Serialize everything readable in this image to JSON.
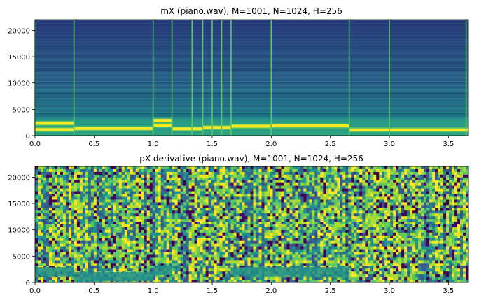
{
  "figure": {
    "background": "#ffffff",
    "colormap": "viridis",
    "colors": {
      "viridis_dark": "#440154",
      "viridis_blue": "#31688e",
      "viridis_teal": "#21918c",
      "viridis_green": "#5ec962",
      "viridis_yellow": "#fde725"
    }
  },
  "chart_data": [
    {
      "type": "heatmap",
      "title": "mX (piano.wav), M=1001, N=1024, H=256",
      "xlabel": "",
      "ylabel": "",
      "xlim": [
        0,
        3.67
      ],
      "ylim": [
        0,
        22050
      ],
      "xticks": [
        0.0,
        0.5,
        1.0,
        1.5,
        2.0,
        2.5,
        3.0,
        3.5
      ],
      "xtick_labels": [
        "0.0",
        "0.5",
        "1.0",
        "1.5",
        "2.0",
        "2.5",
        "3.0",
        "3.5"
      ],
      "yticks": [
        0,
        5000,
        10000,
        15000,
        20000
      ],
      "ytick_labels": [
        "0",
        "5000",
        "10000",
        "15000",
        "20000"
      ],
      "grid": false,
      "note_onsets_s": [
        0.0,
        0.33,
        1.0,
        1.16,
        1.33,
        1.42,
        1.5,
        1.58,
        1.66,
        2.0,
        2.66,
        3.0,
        3.65
      ],
      "harmonic_bands": [
        {
          "t_start": 0.0,
          "t_end": 0.33,
          "freqs_hz": [
            1150,
            2350
          ]
        },
        {
          "t_start": 0.33,
          "t_end": 1.0,
          "freqs_hz": [
            1350
          ]
        },
        {
          "t_start": 1.0,
          "t_end": 1.16,
          "freqs_hz": [
            1950,
            2900
          ]
        },
        {
          "t_start": 1.16,
          "t_end": 1.42,
          "freqs_hz": [
            1300
          ]
        },
        {
          "t_start": 1.42,
          "t_end": 1.66,
          "freqs_hz": [
            1550
          ]
        },
        {
          "t_start": 1.66,
          "t_end": 2.0,
          "freqs_hz": [
            1800
          ]
        },
        {
          "t_start": 2.0,
          "t_end": 2.66,
          "freqs_hz": [
            1850
          ]
        },
        {
          "t_start": 2.66,
          "t_end": 3.67,
          "freqs_hz": [
            1100
          ]
        }
      ]
    },
    {
      "type": "heatmap",
      "title": "pX derivative (piano.wav), M=1001, N=1024, H=256",
      "xlabel": "",
      "ylabel": "",
      "xlim": [
        0,
        3.67
      ],
      "ylim": [
        0,
        22050
      ],
      "xticks": [
        0.0,
        0.5,
        1.0,
        1.5,
        2.0,
        2.5,
        3.0,
        3.5
      ],
      "xtick_labels": [
        "0.0",
        "0.5",
        "1.0",
        "1.5",
        "2.0",
        "2.5",
        "3.0",
        "3.5"
      ],
      "yticks": [
        0,
        5000,
        10000,
        15000,
        20000
      ],
      "ytick_labels": [
        "0",
        "5000",
        "10000",
        "15000",
        "20000"
      ],
      "grid": false
    }
  ]
}
